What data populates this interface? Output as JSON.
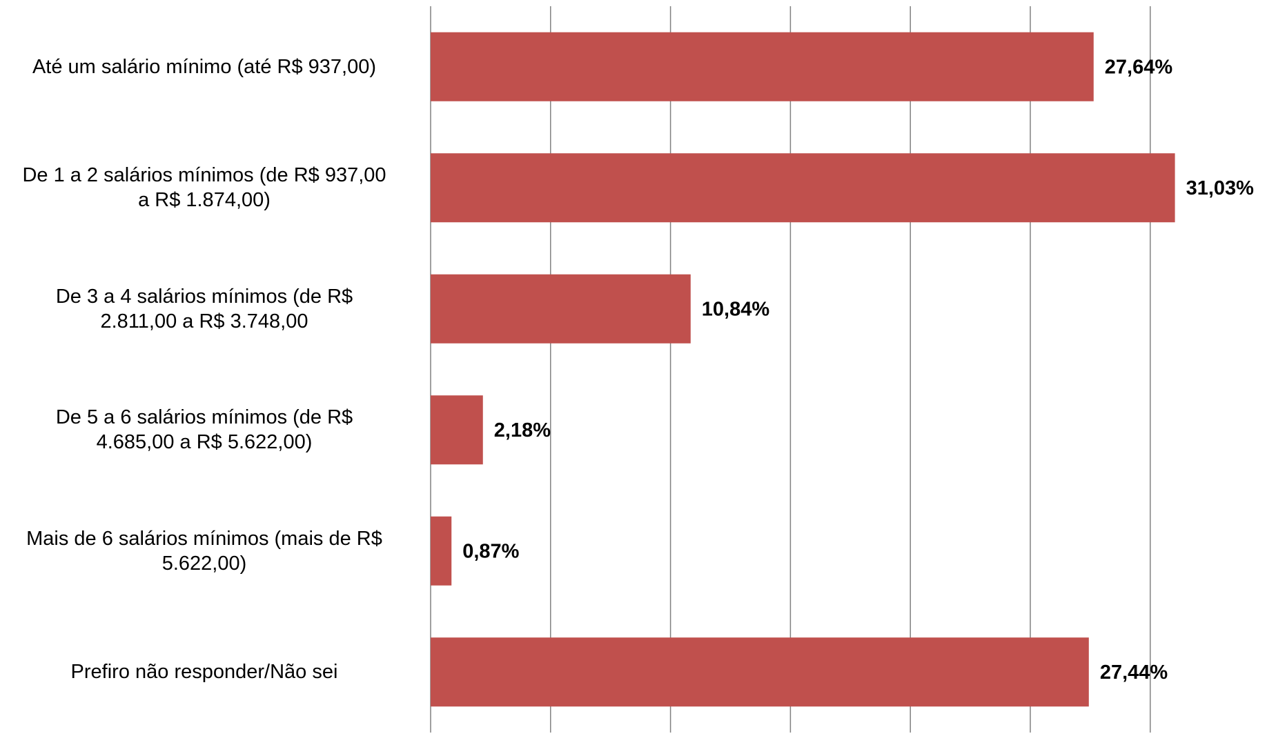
{
  "chart_data": {
    "type": "bar",
    "orientation": "horizontal",
    "categories": [
      "Até um salário mínimo (até R$ 937,00)",
      "De 1 a 2 salários mínimos (de R$ 937,00\na R$ 1.874,00)",
      "De 3 a 4 salários mínimos (de R$\n2.811,00 a R$ 3.748,00",
      "De 5 a 6 salários mínimos (de R$\n4.685,00 a R$ 5.622,00)",
      "Mais de 6 salários mínimos (mais de R$\n5.622,00)",
      "Prefiro não responder/Não sei"
    ],
    "values": [
      27.64,
      31.03,
      10.84,
      2.18,
      0.87,
      27.44
    ],
    "value_labels": [
      "27,64%",
      "31,03%",
      "10,84%",
      "2,18%",
      "0,87%",
      "27,44%"
    ],
    "color": "#c0504d",
    "xlim": [
      0,
      35
    ],
    "xticks": [
      0,
      5,
      10,
      15,
      20,
      25,
      30
    ],
    "grid": true
  }
}
